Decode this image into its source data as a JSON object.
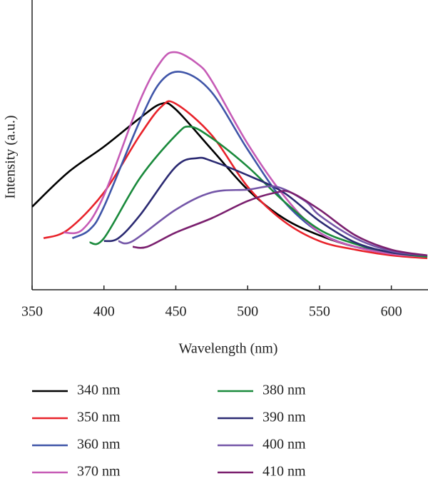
{
  "chart_data": {
    "type": "line",
    "xlabel": "Wavelength (nm)",
    "ylabel": "Intensity (a.u.)",
    "xlim": [
      350,
      625
    ],
    "xticks": [
      350,
      400,
      450,
      500,
      550,
      600
    ],
    "ylim": [
      0,
      100
    ],
    "series": [
      {
        "name": "340 nm",
        "color": "#000000",
        "x": [
          350,
          375,
          400,
          425,
          440,
          450,
          475,
          500,
          525,
          550,
          575,
          600,
          625
        ],
        "values": [
          29,
          41,
          50,
          60,
          65,
          63,
          49,
          35,
          25,
          19,
          15,
          13,
          11.5
        ]
      },
      {
        "name": "350 nm",
        "color": "#e8222a",
        "x": [
          358,
          375,
          400,
          425,
          440,
          450,
          475,
          500,
          525,
          550,
          575,
          600,
          625
        ],
        "values": [
          18,
          21,
          34,
          54,
          64,
          65,
          54,
          36,
          24,
          17,
          14,
          12,
          11
        ]
      },
      {
        "name": "360 nm",
        "color": "#3f55a8",
        "x": [
          378,
          390,
          400,
          425,
          440,
          455,
          475,
          500,
          525,
          550,
          575,
          600,
          625
        ],
        "values": [
          18,
          21,
          29,
          59,
          73,
          76,
          69,
          49,
          31,
          20,
          15,
          13,
          11.5
        ]
      },
      {
        "name": "370 nm",
        "color": "#c65bb6",
        "x": [
          372,
          385,
          400,
          425,
          440,
          450,
          465,
          475,
          500,
          525,
          550,
          575,
          600,
          625
        ],
        "values": [
          20,
          21,
          33,
          66,
          80,
          83,
          79,
          73,
          51,
          33,
          20,
          15,
          12.5,
          11.5
        ]
      },
      {
        "name": "380 nm",
        "color": "#1a8a3c",
        "x": [
          390,
          400,
          425,
          450,
          460,
          475,
          500,
          525,
          550,
          575,
          600,
          625
        ],
        "values": [
          16.5,
          18,
          39,
          54,
          57,
          53,
          43,
          31,
          21,
          16,
          13,
          11.5
        ]
      },
      {
        "name": "390 nm",
        "color": "#2b2a72",
        "x": [
          400,
          410,
          425,
          450,
          465,
          475,
          500,
          525,
          550,
          575,
          600,
          625
        ],
        "values": [
          17,
          18,
          26,
          43,
          46,
          45,
          40,
          34,
          24,
          16.5,
          13,
          12
        ]
      },
      {
        "name": "400 nm",
        "color": "#7456a8",
        "x": [
          410,
          420,
          450,
          475,
          500,
          520,
          540,
          550,
          575,
          600,
          625
        ],
        "values": [
          17,
          17,
          28,
          34,
          35,
          36,
          31,
          26,
          18,
          13.5,
          12
        ]
      },
      {
        "name": "410 nm",
        "color": "#7a1f6e",
        "x": [
          420,
          430,
          450,
          475,
          500,
          520,
          530,
          550,
          575,
          600,
          625
        ],
        "values": [
          15,
          15,
          20,
          25,
          31,
          34,
          34,
          28,
          19,
          14,
          12
        ]
      }
    ]
  }
}
